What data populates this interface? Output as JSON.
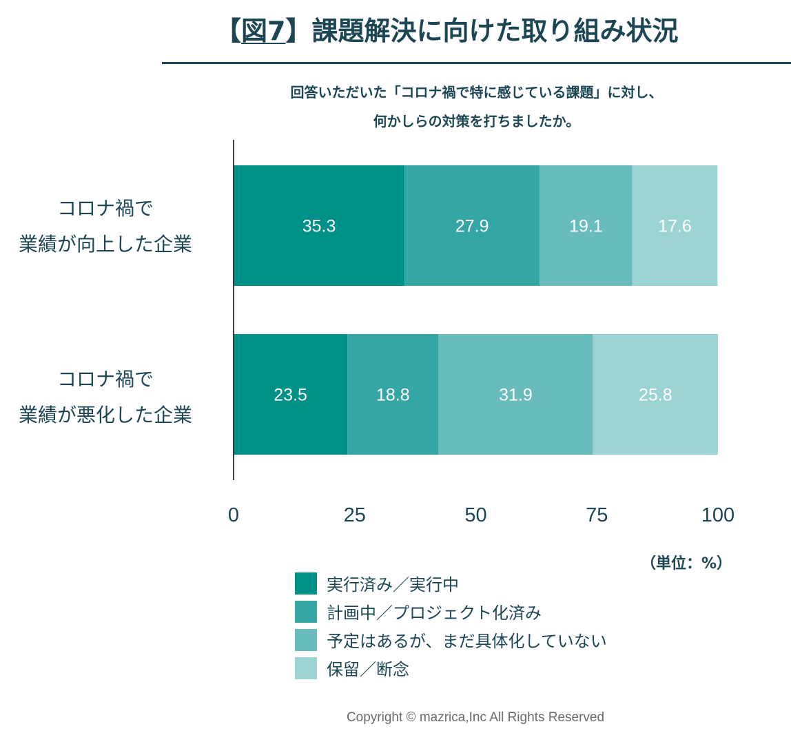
{
  "title": {
    "prefix": "【",
    "fig": "図7",
    "suffix": "】課題解決に向けた取り組み状況"
  },
  "question": {
    "line1": "回答いただいた「コロナ禍で特に感じている課題」に対し、",
    "line2": "何かしらの対策を打ちましたか。"
  },
  "unit_label": "（単位：%）",
  "copyright": "Copyright © mazrica,Inc All Rights Reserved",
  "chart_data": {
    "type": "bar",
    "orientation": "horizontal",
    "stacked": true,
    "categories": [
      {
        "line1": "コロナ禍で",
        "line2": "業績が向上した企業"
      },
      {
        "line1": "コロナ禍で",
        "line2": "業績が悪化した企業"
      }
    ],
    "series": [
      {
        "name": "実行済み／実行中",
        "color": "#00908a",
        "values": [
          35.3,
          23.5
        ]
      },
      {
        "name": "計画中／プロジェクト化済み",
        "color": "#34a6a6",
        "values": [
          27.9,
          18.8
        ]
      },
      {
        "name": "予定はあるが、まだ具体化していない",
        "color": "#68bcbc",
        "values": [
          19.1,
          31.9
        ]
      },
      {
        "name": "保留／断念",
        "color": "#9cd4d4",
        "values": [
          17.6,
          25.8
        ]
      }
    ],
    "xlim": [
      0,
      100
    ],
    "xticks": [
      "0",
      "25",
      "50",
      "75",
      "100"
    ],
    "data_label_color": "#ffffff",
    "axis_color": "#1d4654",
    "grid": false,
    "legend_position": "bottom"
  }
}
